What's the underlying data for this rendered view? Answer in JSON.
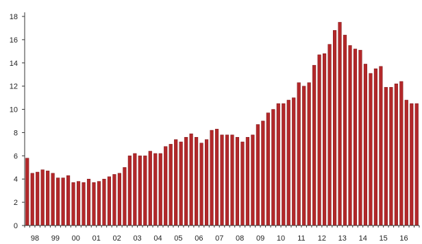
{
  "chart_data": {
    "type": "bar",
    "title": "",
    "xlabel": "",
    "ylabel": "",
    "ylim": [
      0,
      18
    ],
    "yticks": [
      0,
      2,
      4,
      6,
      8,
      10,
      12,
      14,
      16,
      18
    ],
    "xtick_labels": [
      "98",
      "99",
      "00",
      "01",
      "02",
      "03",
      "04",
      "05",
      "06",
      "07",
      "08",
      "09",
      "10",
      "11",
      "12",
      "13",
      "14",
      "15",
      "16"
    ],
    "bars_per_year": 4,
    "grid": false,
    "legend": "none",
    "bar_color": "#b3282a",
    "bar_edge_color": "#7a1416",
    "values": [
      5.8,
      4.5,
      4.6,
      4.8,
      4.7,
      4.5,
      4.1,
      4.1,
      4.3,
      3.7,
      3.8,
      3.7,
      4.0,
      3.7,
      3.8,
      4.0,
      4.2,
      4.4,
      4.5,
      5.0,
      6.0,
      6.2,
      6.0,
      6.0,
      6.4,
      6.2,
      6.2,
      6.8,
      7.0,
      7.4,
      7.2,
      7.6,
      7.9,
      7.6,
      7.1,
      7.4,
      8.2,
      8.3,
      7.8,
      7.8,
      7.8,
      7.6,
      7.2,
      7.6,
      7.8,
      8.7,
      9.0,
      9.7,
      10.0,
      10.5,
      10.5,
      10.8,
      11.0,
      12.3,
      12.0,
      12.3,
      13.8,
      14.7,
      14.8,
      15.6,
      16.8,
      17.5,
      16.4,
      15.5,
      15.2,
      15.1,
      13.9,
      13.1,
      13.5,
      13.7,
      11.9,
      11.9,
      12.2,
      12.4,
      10.8,
      10.5,
      10.5
    ]
  }
}
